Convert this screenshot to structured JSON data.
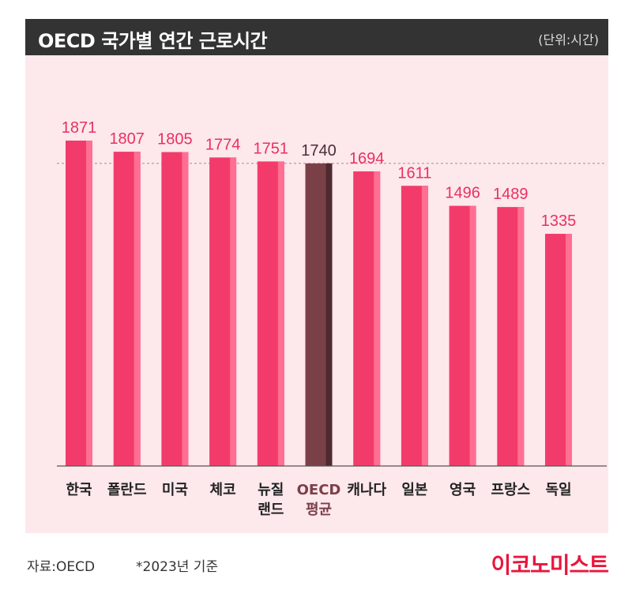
{
  "header": {
    "title": "OECD 국가별 연간 근로시간",
    "unit": "(단위:시간)"
  },
  "footer": {
    "source": "자료:OECD",
    "note": "*2023년 기준",
    "brand": "이코노미스트"
  },
  "colors": {
    "bar": "#f23b6b",
    "bar_shade": "#ff6f92",
    "highlight": "#7a4048",
    "highlight_shade": "#4e2a30",
    "label": "#e8315f",
    "highlight_label": "#4a2e33"
  },
  "chart_data": {
    "type": "bar",
    "categories": [
      [
        "한국"
      ],
      [
        "폴란드"
      ],
      [
        "미국"
      ],
      [
        "체코"
      ],
      [
        "뉴질",
        "랜드"
      ],
      [
        "OECD",
        "평균"
      ],
      [
        "캐나다"
      ],
      [
        "일본"
      ],
      [
        "영국"
      ],
      [
        "프랑스"
      ],
      [
        "독일"
      ]
    ],
    "values": [
      1871,
      1807,
      1805,
      1774,
      1751,
      1740,
      1694,
      1611,
      1496,
      1489,
      1335
    ],
    "data_labels": [
      "1871",
      "1807",
      "1805",
      "1774",
      "1751",
      "1740",
      "1694",
      "1611",
      "1496",
      "1489",
      "1335"
    ],
    "highlight_index": 5,
    "reference_line": {
      "value": 1740,
      "style": "dashed"
    },
    "title": "OECD 국가별 연간 근로시간",
    "ylabel": "",
    "xlabel": "",
    "grid": false
  }
}
